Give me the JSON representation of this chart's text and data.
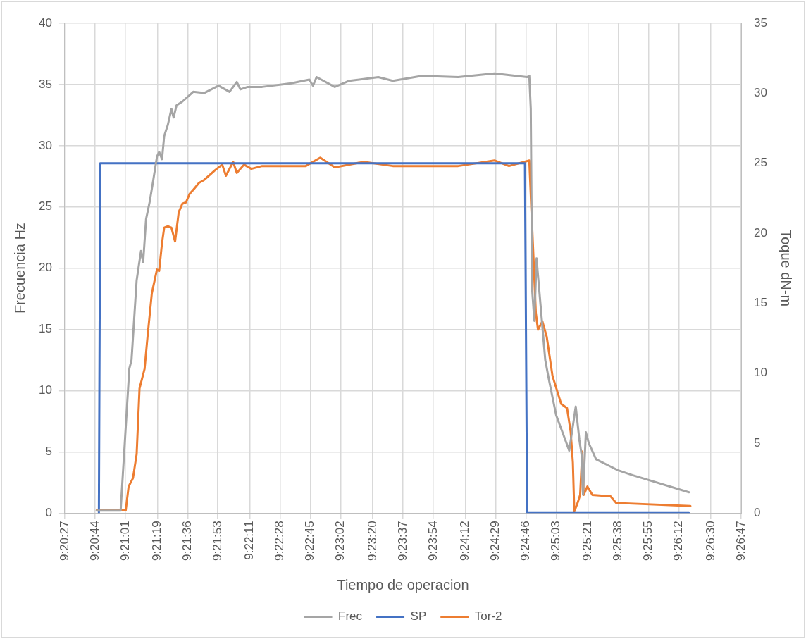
{
  "chart_data": {
    "type": "line",
    "xlabel": "Tiempo de operacion",
    "ylabel": "Frecuencia Hz",
    "y2label": "Toque dN-m",
    "xlim": [
      9.340833,
      9.446389
    ],
    "xticks": [
      {
        "value": 9.340833,
        "label": "9:20:27"
      },
      {
        "value": 9.345556,
        "label": "9:20:44"
      },
      {
        "value": 9.350278,
        "label": "9:21:01"
      },
      {
        "value": 9.355278,
        "label": "9:21:19"
      },
      {
        "value": 9.36,
        "label": "9:21:36"
      },
      {
        "value": 9.364722,
        "label": "9:21:53"
      },
      {
        "value": 9.369722,
        "label": "9:22:11"
      },
      {
        "value": 9.374444,
        "label": "9:22:28"
      },
      {
        "value": 9.379167,
        "label": "9:22:45"
      },
      {
        "value": 9.383889,
        "label": "9:23:02"
      },
      {
        "value": 9.388889,
        "label": "9:23:20"
      },
      {
        "value": 9.393611,
        "label": "9:23:37"
      },
      {
        "value": 9.398333,
        "label": "9:23:54"
      },
      {
        "value": 9.403333,
        "label": "9:24:12"
      },
      {
        "value": 9.408056,
        "label": "9:24:29"
      },
      {
        "value": 9.412778,
        "label": "9:24:46"
      },
      {
        "value": 9.4175,
        "label": "9:25:03"
      },
      {
        "value": 9.4225,
        "label": "9:25:21"
      },
      {
        "value": 9.427222,
        "label": "9:25:38"
      },
      {
        "value": 9.431944,
        "label": "9:25:55"
      },
      {
        "value": 9.436667,
        "label": "9:26:12"
      },
      {
        "value": 9.441667,
        "label": "9:26:30"
      },
      {
        "value": 9.446389,
        "label": "9:26:47"
      }
    ],
    "ylim": [
      0,
      40
    ],
    "yticks": [
      0,
      5,
      10,
      15,
      20,
      25,
      30,
      35,
      40
    ],
    "y2lim": [
      0,
      35
    ],
    "y2ticks": [
      0,
      5,
      10,
      15,
      20,
      25,
      30,
      35
    ],
    "grid": true,
    "legend": "bottom",
    "marker": "none",
    "line_style": "solid",
    "series": [
      {
        "name": "Frec",
        "color": "#a5a5a5",
        "axis": "y",
        "x": [
          9.34582,
          9.34955,
          9.35091,
          9.35125,
          9.35205,
          9.35273,
          9.35307,
          9.35352,
          9.35408,
          9.35465,
          9.35522,
          9.35556,
          9.35601,
          9.35635,
          9.35692,
          9.35748,
          9.35782,
          9.35828,
          9.35918,
          9.36088,
          9.36258,
          9.36484,
          9.36654,
          9.36768,
          9.36824,
          9.36938,
          9.37164,
          9.37617,
          9.379,
          9.37957,
          9.38013,
          9.38297,
          9.38523,
          9.38976,
          9.39203,
          9.39656,
          9.40222,
          9.40788,
          9.41298,
          9.41332,
          9.41355,
          9.41377,
          9.41411,
          9.41445,
          9.41581,
          9.41638,
          9.41751,
          9.41864,
          9.41955,
          9.42057,
          9.42113,
          9.42147,
          9.4217,
          9.42215,
          9.42261,
          9.42374,
          9.42601,
          9.42714,
          9.4294,
          9.43824
        ],
        "values": [
          0.2,
          0.2,
          11.8,
          12.5,
          19,
          21.4,
          20.5,
          24,
          25.4,
          27.2,
          29.1,
          29.5,
          28.9,
          30.8,
          31.7,
          33,
          32.3,
          33.3,
          33.6,
          34.4,
          34.3,
          34.9,
          34.4,
          35.2,
          34.6,
          34.8,
          34.8,
          35.1,
          35.4,
          34.9,
          35.6,
          34.8,
          35.3,
          35.6,
          35.3,
          35.7,
          35.6,
          35.9,
          35.6,
          35.7,
          33,
          18.2,
          15.7,
          20.8,
          12.5,
          10.9,
          8,
          6.4,
          5.1,
          8.7,
          6,
          4.8,
          1.5,
          6.6,
          5.7,
          4.4,
          3.8,
          3.5,
          3.1,
          1.7
        ]
      },
      {
        "name": "SP",
        "color": "#4472c4",
        "axis": "y2",
        "x": [
          9.34616,
          9.34638,
          9.41264,
          9.41298,
          9.43824
        ],
        "values": [
          0,
          25,
          25,
          0,
          0
        ]
      },
      {
        "name": "Tor-2",
        "color": "#ed7d31",
        "axis": "y2",
        "x": [
          9.34582,
          9.35035,
          9.3508,
          9.35148,
          9.35205,
          9.3525,
          9.35329,
          9.35375,
          9.35442,
          9.35522,
          9.35556,
          9.35601,
          9.35635,
          9.35692,
          9.35748,
          9.35805,
          9.35862,
          9.35918,
          9.35975,
          9.36031,
          9.36088,
          9.36179,
          9.36258,
          9.36428,
          9.36541,
          9.36598,
          9.36711,
          9.36768,
          9.36881,
          9.36994,
          9.37164,
          9.37391,
          9.37844,
          9.3807,
          9.38297,
          9.3875,
          9.39203,
          9.39656,
          9.40222,
          9.40788,
          9.41015,
          9.41332,
          9.41377,
          9.41434,
          9.41468,
          9.41536,
          9.41604,
          9.41694,
          9.4183,
          9.41921,
          9.41978,
          9.42012,
          9.42034,
          9.42091,
          9.42125,
          9.42159,
          9.42181,
          9.42238,
          9.42317,
          9.42601,
          9.42691,
          9.42827,
          9.43846
        ],
        "values": [
          0.2,
          0.2,
          1.9,
          2.5,
          4.2,
          8.9,
          10.3,
          12.6,
          15.7,
          17.4,
          17.3,
          19.3,
          20.4,
          20.5,
          20.4,
          19.4,
          21.5,
          22.1,
          22.2,
          22.8,
          23.1,
          23.6,
          23.8,
          24.5,
          24.9,
          24.1,
          25.1,
          24.3,
          24.9,
          24.6,
          24.8,
          24.8,
          24.8,
          25.4,
          24.7,
          25.1,
          24.8,
          24.8,
          24.8,
          25.2,
          24.8,
          25.2,
          20.4,
          14.3,
          13.1,
          13.7,
          12.6,
          9.8,
          7.8,
          7.5,
          5.8,
          3.6,
          0.1,
          0.8,
          1.3,
          4.4,
          1.3,
          1.9,
          1.3,
          1.2,
          0.7,
          0.7,
          0.5
        ]
      }
    ]
  }
}
